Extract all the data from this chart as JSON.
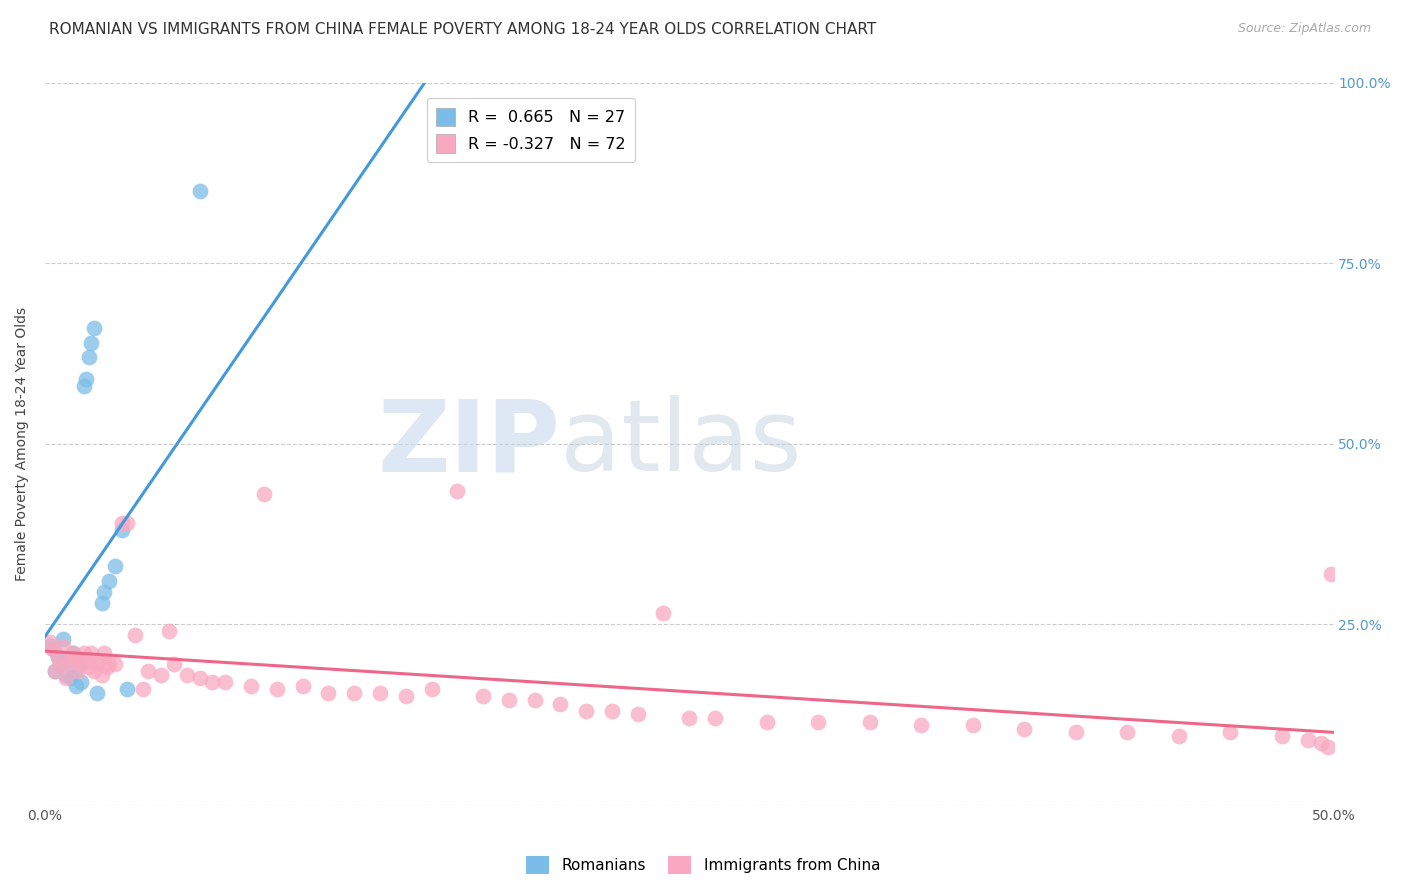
{
  "title": "ROMANIAN VS IMMIGRANTS FROM CHINA FEMALE POVERTY AMONG 18-24 YEAR OLDS CORRELATION CHART",
  "source": "Source: ZipAtlas.com",
  "ylabel": "Female Poverty Among 18-24 Year Olds",
  "xlim": [
    0.0,
    0.5
  ],
  "ylim": [
    0.0,
    1.0
  ],
  "background_color": "#ffffff",
  "grid_color": "#cccccc",
  "legend_r1": "R =  0.665",
  "legend_n1": "N = 27",
  "legend_r2": "R = -0.327",
  "legend_n2": "N = 72",
  "color_blue": "#7bbde8",
  "color_pink": "#f8a8c0",
  "line_blue": "#4499dd",
  "line_pink": "#ee6688",
  "title_fontsize": 11,
  "source_fontsize": 9,
  "blue_points_x": [
    0.002,
    0.003,
    0.004,
    0.005,
    0.006,
    0.007,
    0.008,
    0.009,
    0.01,
    0.011,
    0.012,
    0.013,
    0.014,
    0.015,
    0.016,
    0.017,
    0.018,
    0.019,
    0.02,
    0.022,
    0.023,
    0.025,
    0.027,
    0.03,
    0.032,
    0.06,
    0.16
  ],
  "blue_points_y": [
    0.22,
    0.215,
    0.185,
    0.205,
    0.195,
    0.23,
    0.18,
    0.2,
    0.175,
    0.21,
    0.165,
    0.19,
    0.17,
    0.58,
    0.59,
    0.62,
    0.64,
    0.66,
    0.155,
    0.28,
    0.295,
    0.31,
    0.33,
    0.38,
    0.16,
    0.85,
    0.96
  ],
  "pink_points_x": [
    0.002,
    0.003,
    0.004,
    0.005,
    0.006,
    0.007,
    0.008,
    0.009,
    0.01,
    0.011,
    0.012,
    0.013,
    0.014,
    0.015,
    0.016,
    0.017,
    0.018,
    0.019,
    0.02,
    0.021,
    0.022,
    0.023,
    0.024,
    0.025,
    0.027,
    0.03,
    0.032,
    0.035,
    0.038,
    0.04,
    0.045,
    0.048,
    0.05,
    0.055,
    0.06,
    0.065,
    0.07,
    0.08,
    0.085,
    0.09,
    0.1,
    0.11,
    0.12,
    0.13,
    0.14,
    0.15,
    0.16,
    0.17,
    0.18,
    0.19,
    0.2,
    0.21,
    0.22,
    0.23,
    0.24,
    0.25,
    0.26,
    0.28,
    0.3,
    0.32,
    0.34,
    0.36,
    0.38,
    0.4,
    0.42,
    0.44,
    0.46,
    0.48,
    0.49,
    0.495,
    0.498,
    0.499
  ],
  "pink_points_y": [
    0.225,
    0.215,
    0.185,
    0.205,
    0.195,
    0.22,
    0.175,
    0.195,
    0.205,
    0.21,
    0.2,
    0.185,
    0.195,
    0.21,
    0.2,
    0.19,
    0.21,
    0.185,
    0.195,
    0.2,
    0.18,
    0.21,
    0.19,
    0.195,
    0.195,
    0.39,
    0.39,
    0.235,
    0.16,
    0.185,
    0.18,
    0.24,
    0.195,
    0.18,
    0.175,
    0.17,
    0.17,
    0.165,
    0.43,
    0.16,
    0.165,
    0.155,
    0.155,
    0.155,
    0.15,
    0.16,
    0.435,
    0.15,
    0.145,
    0.145,
    0.14,
    0.13,
    0.13,
    0.125,
    0.265,
    0.12,
    0.12,
    0.115,
    0.115,
    0.115,
    0.11,
    0.11,
    0.105,
    0.1,
    0.1,
    0.095,
    0.1,
    0.095,
    0.09,
    0.085,
    0.08,
    0.32
  ]
}
